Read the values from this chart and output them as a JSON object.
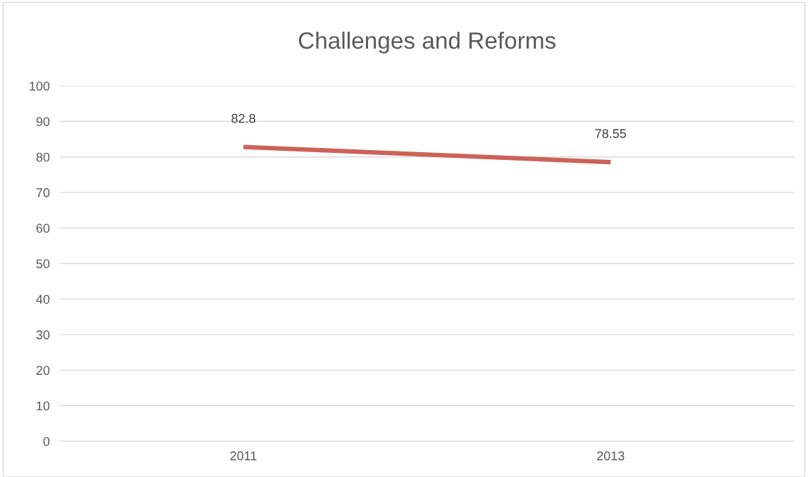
{
  "chart_data": {
    "type": "line",
    "title": "Challenges and Reforms",
    "categories": [
      "2011",
      "2013"
    ],
    "series": [
      {
        "color": "#cc6258",
        "values": [
          82.8,
          78.55
        ]
      }
    ],
    "ylim": [
      0,
      100
    ],
    "yticks": [
      0,
      10,
      20,
      30,
      40,
      50,
      60,
      70,
      80,
      90,
      100
    ],
    "grid": "y",
    "data_labels": true,
    "marker": "none",
    "line_style": "solid"
  }
}
